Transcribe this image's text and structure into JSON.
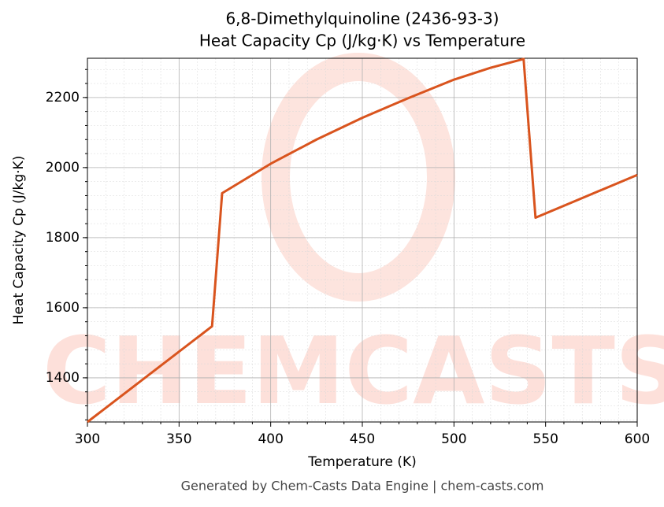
{
  "chart_data": {
    "type": "line",
    "title": "6,8-Dimethylquinoline (2436-93-3)",
    "subtitle": "Heat Capacity Cp (J/kg·K) vs Temperature",
    "x_label": "Temperature (K)",
    "y_label": "Heat Capacity Cp (J/kg·K)",
    "footer": "Generated by Chem-Casts Data Engine | chem-casts.com",
    "watermark": "CHEMCASTS",
    "x": [
      300,
      368,
      373.5,
      400,
      425,
      450,
      475,
      500,
      520,
      538,
      544.5,
      600
    ],
    "series": [
      {
        "name": "Cp",
        "color": "#d9541e",
        "values": [
          1274,
          1547,
          1927,
          2011,
          2080,
          2142,
          2198,
          2251,
          2285,
          2310,
          1857,
          1979
        ]
      }
    ],
    "xlim": [
      300,
      600
    ],
    "xticks": [
      300,
      350,
      400,
      450,
      500,
      550,
      600
    ],
    "ylim": [
      1274,
      2312
    ],
    "yticks": [
      1400,
      1600,
      1800,
      2000,
      2200
    ],
    "grid": true,
    "minor_grid": true
  }
}
